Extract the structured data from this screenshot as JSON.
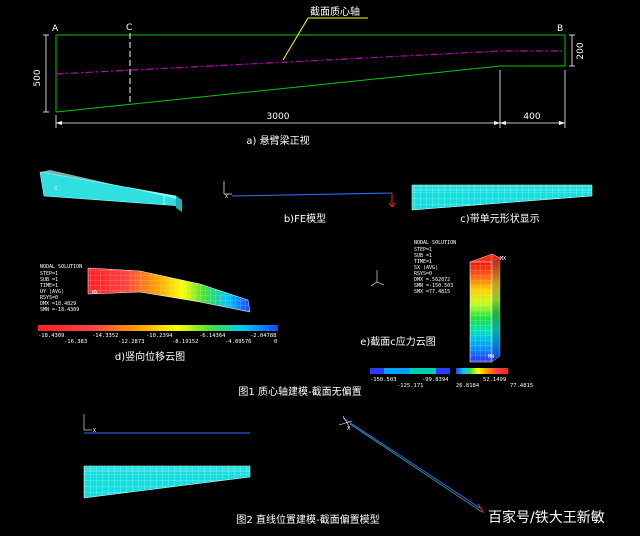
{
  "panel_a": {
    "axis_label": "截面质心轴",
    "point_a": "A",
    "point_b": "B",
    "point_c": "C",
    "dim_left": "500",
    "dim_right": "200",
    "dim_main": "3000",
    "dim_end": "400",
    "caption": "a) 悬臂梁正视"
  },
  "captions": {
    "b": "b)FE模型",
    "c": "c)带单元形状显示",
    "d": "d)竖向位移云图",
    "e": "e)截面c应力云图",
    "fig1": "图1 质心轴建模-截面无偏置",
    "fig2": "图2 直线位置建模-截面偏置模型"
  },
  "panel_d": {
    "info": [
      "NODAL SOLUTION",
      "STEP=1",
      "SUB =1",
      "TIME=1",
      "UY      (AVG)",
      "RSYS=0",
      "DMX =18.4829",
      "SMN =-18.4309"
    ],
    "ticks_top": [
      "-18.4309",
      "-14.3352",
      "-10.2394",
      "-6.14364",
      "-2.04788"
    ],
    "ticks_bottom": [
      "-16.383",
      "-12.2873",
      "-8.19152",
      "-4.09576",
      "0"
    ]
  },
  "panel_e": {
    "info": [
      "NODAL SOLUTION",
      "STEP=1",
      "SUB =1",
      "TIME=1",
      "SX      (AVG)",
      "RSYS=0",
      "DMX =.562072",
      "SMN =-150.503",
      "SMX =77.4815"
    ],
    "ticks_top": [
      "-150.503",
      "-99.8394",
      "52.1499"
    ],
    "ticks_bottom": [
      "-125.171",
      "26.8184",
      "77.4815"
    ],
    "mx_label": "MX",
    "mn_label": "MN"
  },
  "watermark": "百家号/铁大王新敏",
  "colors": {
    "beam": "#00c800",
    "centroid": "#c000c0",
    "mesh": "#00e8e8",
    "blue": "#2020ff"
  }
}
